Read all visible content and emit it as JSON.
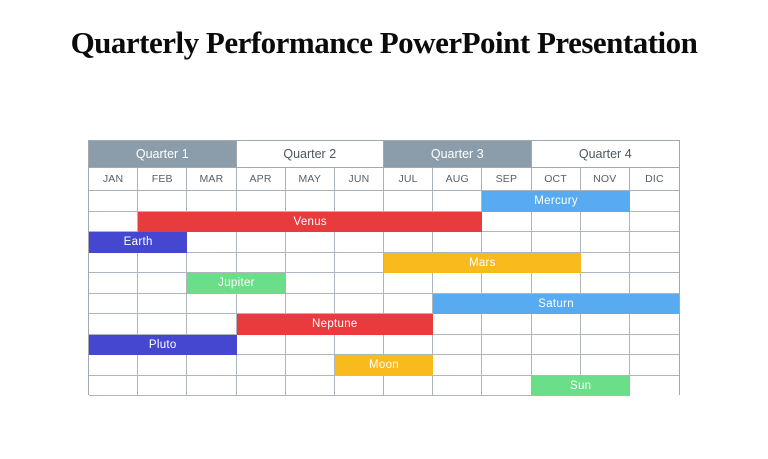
{
  "slide": {
    "title": "Quarterly Performance PowerPoint Presentation",
    "background_color": "#ffffff",
    "title_color": "#0b0b0b"
  },
  "chart_data": {
    "type": "bar",
    "variant": "gantt-timeline",
    "title": "Quarterly Performance PowerPoint Presentation",
    "legend": "none",
    "grid": true,
    "quarters": [
      {
        "label": "Quarter 1",
        "months": [
          "JAN",
          "FEB",
          "MAR"
        ],
        "shaded": true
      },
      {
        "label": "Quarter 2",
        "months": [
          "APR",
          "MAY",
          "JUN"
        ],
        "shaded": false
      },
      {
        "label": "Quarter 3",
        "months": [
          "JUL",
          "AUG",
          "SEP"
        ],
        "shaded": true
      },
      {
        "label": "Quarter 4",
        "months": [
          "OCT",
          "NOV",
          "DIC"
        ],
        "shaded": false
      }
    ],
    "months": [
      "JAN",
      "FEB",
      "MAR",
      "APR",
      "MAY",
      "JUN",
      "JUL",
      "AUG",
      "SEP",
      "OCT",
      "NOV",
      "DIC"
    ],
    "row_count": 10,
    "tasks": [
      {
        "name": "Mercury",
        "row": 1,
        "start_month": "SEP",
        "end_month": "NOV",
        "start_index": 8,
        "end_index": 10,
        "duration_months": 3,
        "color": "#58abf1"
      },
      {
        "name": "Venus",
        "row": 2,
        "start_month": "FEB",
        "end_month": "AUG",
        "start_index": 1,
        "end_index": 7,
        "duration_months": 7,
        "color": "#e83b3e"
      },
      {
        "name": "Earth",
        "row": 3,
        "start_month": "JAN",
        "end_month": "FEB",
        "start_index": 0,
        "end_index": 1,
        "duration_months": 2,
        "color": "#4547d0"
      },
      {
        "name": "Mars",
        "row": 4,
        "start_month": "JUL",
        "end_month": "OCT",
        "start_index": 6,
        "end_index": 9,
        "duration_months": 4,
        "color": "#f8ba1c"
      },
      {
        "name": "Jupiter",
        "row": 5,
        "start_month": "MAR",
        "end_month": "APR",
        "start_index": 2,
        "end_index": 3,
        "duration_months": 2,
        "color": "#6ade88"
      },
      {
        "name": "Saturn",
        "row": 6,
        "start_month": "AUG",
        "end_month": "DIC",
        "start_index": 7,
        "end_index": 11,
        "duration_months": 5,
        "color": "#58abf1"
      },
      {
        "name": "Neptune",
        "row": 7,
        "start_month": "APR",
        "end_month": "JUL",
        "start_index": 3,
        "end_index": 6,
        "duration_months": 4,
        "color": "#e83b3e"
      },
      {
        "name": "Pluto",
        "row": 8,
        "start_month": "JAN",
        "end_month": "MAR",
        "start_index": 0,
        "end_index": 2,
        "duration_months": 3,
        "color": "#4547d0"
      },
      {
        "name": "Moon",
        "row": 9,
        "start_month": "JUN",
        "end_month": "JUL",
        "start_index": 5,
        "end_index": 6,
        "duration_months": 2,
        "color": "#f8ba1c"
      },
      {
        "name": "Sun",
        "row": 10,
        "start_month": "OCT",
        "end_month": "NOV",
        "start_index": 9,
        "end_index": 10,
        "duration_months": 2,
        "color": "#6ade88"
      }
    ],
    "colors": {
      "quarter_header_shaded": "#8b9cab",
      "quarter_header_text_shaded": "#ffffff",
      "quarter_header_text_light": "#4c5761",
      "month_text": "#566069",
      "grid_border": "#aeb5bc",
      "bar_text": "#ffffff",
      "bar_blue": "#58abf1",
      "bar_red": "#e83b3e",
      "bar_indigo": "#4547d0",
      "bar_amber": "#f8ba1c",
      "bar_green": "#6ade88"
    }
  }
}
